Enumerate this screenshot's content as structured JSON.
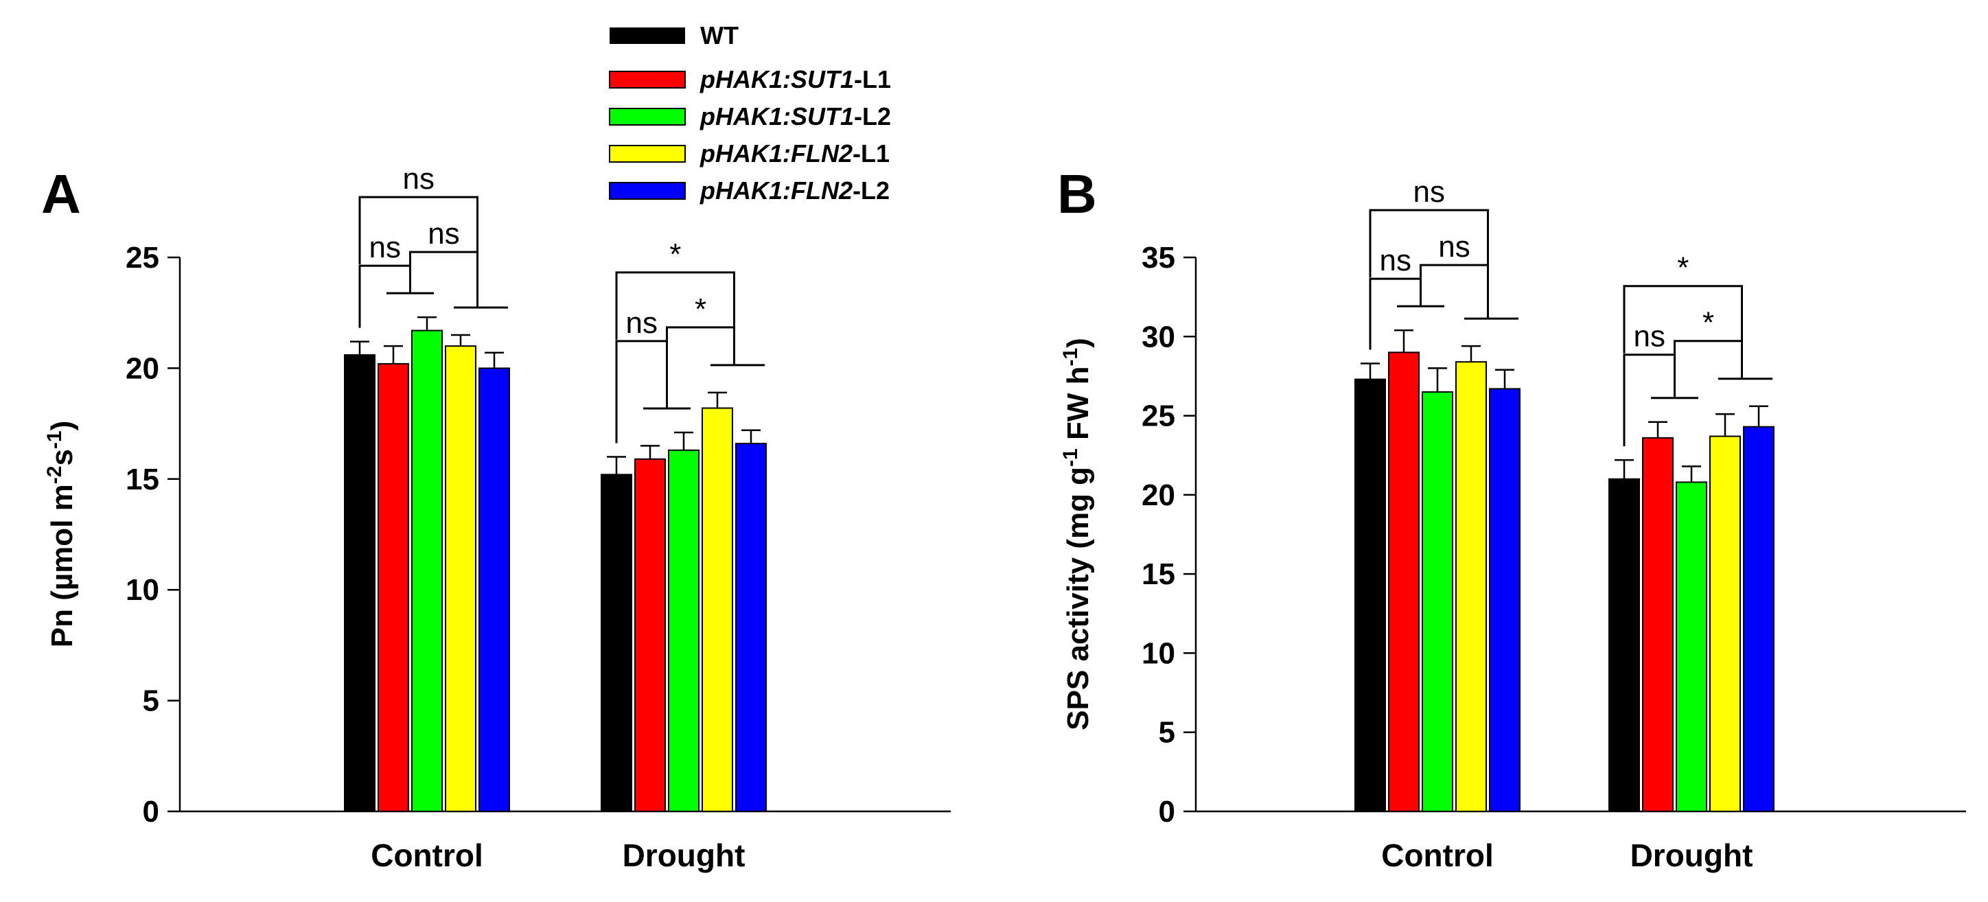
{
  "legend": [
    {
      "id": "wt",
      "italic": "",
      "suffix": "WT",
      "color": "#000000"
    },
    {
      "id": "sut1-l1",
      "italic": "pHAK1:SUT1",
      "suffix": "-L1",
      "color": "#ff0000"
    },
    {
      "id": "sut1-l2",
      "italic": "pHAK1:SUT1",
      "suffix": "-L2",
      "color": "#00ff00"
    },
    {
      "id": "fln2-l1",
      "italic": "pHAK1:FLN2",
      "suffix": "-L1",
      "color": "#ffff00"
    },
    {
      "id": "fln2-l2",
      "italic": "pHAK1:FLN2",
      "suffix": "-L2",
      "color": "#0000ff"
    }
  ],
  "chart_data": [
    {
      "panel": "A",
      "type": "bar",
      "title": "",
      "xlabel": "",
      "ylabel_parts": [
        "Pn (",
        "µ",
        "mol m",
        "-2",
        "s",
        "-1",
        ")"
      ],
      "ylim": [
        0,
        25
      ],
      "yticks": [
        "0",
        "5",
        "10",
        "15",
        "20",
        "25"
      ],
      "categories": [
        "Control",
        "Drought"
      ],
      "series": [
        {
          "name": "WT",
          "values": [
            20.6,
            15.2
          ],
          "errors": [
            0.6,
            0.8
          ]
        },
        {
          "name": "pHAK1:SUT1-L1",
          "values": [
            20.2,
            15.9
          ],
          "errors": [
            0.8,
            0.6
          ]
        },
        {
          "name": "pHAK1:SUT1-L2",
          "values": [
            21.7,
            16.3
          ],
          "errors": [
            0.6,
            0.8
          ]
        },
        {
          "name": "pHAK1:FLN2-L1",
          "values": [
            21.0,
            18.2
          ],
          "errors": [
            0.5,
            0.7
          ]
        },
        {
          "name": "pHAK1:FLN2-L2",
          "values": [
            20.0,
            16.6
          ],
          "errors": [
            0.7,
            0.6
          ]
        }
      ],
      "annotations": [
        {
          "label": "ns",
          "group": 0,
          "level": "top"
        },
        {
          "label": "ns",
          "group": 0,
          "level": "left"
        },
        {
          "label": "ns",
          "group": 0,
          "level": "right"
        },
        {
          "label": "*",
          "group": 1,
          "level": "top"
        },
        {
          "label": "ns",
          "group": 1,
          "level": "left"
        },
        {
          "label": "*",
          "group": 1,
          "level": "right"
        }
      ]
    },
    {
      "panel": "B",
      "type": "bar",
      "title": "",
      "xlabel": "",
      "ylabel_parts": [
        "SPS activity (mg g",
        "-1",
        " FW h",
        "-1",
        ")"
      ],
      "ylim": [
        0,
        35
      ],
      "yticks": [
        "0",
        "5",
        "10",
        "15",
        "20",
        "25",
        "30",
        "35"
      ],
      "categories": [
        "Control",
        "Drought"
      ],
      "series": [
        {
          "name": "WT",
          "values": [
            27.3,
            21.0
          ],
          "errors": [
            1.0,
            1.2
          ]
        },
        {
          "name": "pHAK1:SUT1-L1",
          "values": [
            29.0,
            23.6
          ],
          "errors": [
            1.4,
            1.0
          ]
        },
        {
          "name": "pHAK1:SUT1-L2",
          "values": [
            26.5,
            20.8
          ],
          "errors": [
            1.5,
            1.0
          ]
        },
        {
          "name": "pHAK1:FLN2-L1",
          "values": [
            28.4,
            23.7
          ],
          "errors": [
            1.0,
            1.4
          ]
        },
        {
          "name": "pHAK1:FLN2-L2",
          "values": [
            26.7,
            24.3
          ],
          "errors": [
            1.2,
            1.3
          ]
        }
      ],
      "annotations": [
        {
          "label": "ns",
          "group": 0,
          "level": "top"
        },
        {
          "label": "ns",
          "group": 0,
          "level": "left"
        },
        {
          "label": "ns",
          "group": 0,
          "level": "right"
        },
        {
          "label": "*",
          "group": 1,
          "level": "top"
        },
        {
          "label": "ns",
          "group": 1,
          "level": "left"
        },
        {
          "label": "*",
          "group": 1,
          "level": "right"
        }
      ]
    }
  ]
}
